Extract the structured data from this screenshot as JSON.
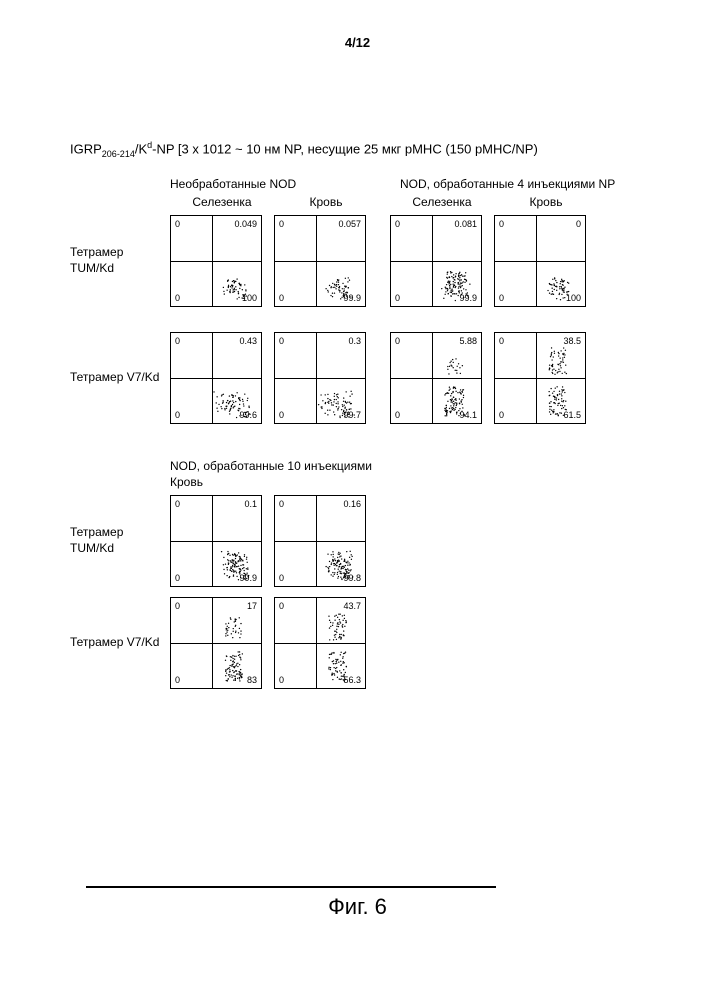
{
  "page_number": "4/12",
  "title_prefix": "IGRP",
  "title_sub": "206-214",
  "title_mid": "/K",
  "title_sup": "d",
  "title_suffix": "-NP [3 x 1012 ~ 10 нм NP, несущие 25 мкг pMHC (150 pMHC/NP)",
  "group_headers": {
    "untreated": "Необработанные NOD",
    "treated4": "NOD, обработанные 4 инъекциями NP"
  },
  "col_headers": {
    "spleen": "Селезенка",
    "blood": "Кровь"
  },
  "row_labels": {
    "tum": "Тетрамер TUM/Kd",
    "v7": "Тетрамер V7/Kd"
  },
  "section2_header": "NOD, обработанные 10 инъекциями",
  "section2_subheader": "Кровь",
  "plots_row1": [
    {
      "tl": "0",
      "tr": "0.049",
      "bl": "0",
      "br": "100",
      "cluster": "br-small"
    },
    {
      "tl": "0",
      "tr": "0.057",
      "bl": "0",
      "br": "99.9",
      "cluster": "br-small"
    },
    {
      "tl": "0",
      "tr": "0.081",
      "bl": "0",
      "br": "99.9",
      "cluster": "br-dense"
    },
    {
      "tl": "0",
      "tr": "0",
      "bl": "0",
      "br": "100",
      "cluster": "br-small"
    }
  ],
  "plots_row2": [
    {
      "tl": "0",
      "tr": "0.43",
      "bl": "0",
      "br": "99.6",
      "cluster": "br-spread"
    },
    {
      "tl": "0",
      "tr": "0.3",
      "bl": "0",
      "br": "99.7",
      "cluster": "br-spread"
    },
    {
      "tl": "0",
      "tr": "5.88",
      "bl": "0",
      "br": "94.1",
      "cluster": "split-small"
    },
    {
      "tl": "0",
      "tr": "38.5",
      "bl": "0",
      "br": "61.5",
      "cluster": "split-large"
    }
  ],
  "plots_row3": [
    {
      "tl": "0",
      "tr": "0.1",
      "bl": "0",
      "br": "99.9",
      "cluster": "br-dense"
    },
    {
      "tl": "0",
      "tr": "0.16",
      "bl": "0",
      "br": "99.8",
      "cluster": "br-dense"
    }
  ],
  "plots_row4": [
    {
      "tl": "0",
      "tr": "17",
      "bl": "0",
      "br": "83",
      "cluster": "split-medium"
    },
    {
      "tl": "0",
      "tr": "43.7",
      "bl": "0",
      "br": "56.3",
      "cluster": "split-large"
    }
  ],
  "crosshair": {
    "h_pct": 50,
    "v_pct": 45
  },
  "figure_label": "Фиг. 6",
  "colors": {
    "bg": "#ffffff",
    "border": "#000000",
    "dots": "#000000"
  },
  "layout": {
    "gh_untreated_w": 200,
    "gh_treated4_ml": 30,
    "ch_w": 104,
    "ch_gap": 20
  }
}
